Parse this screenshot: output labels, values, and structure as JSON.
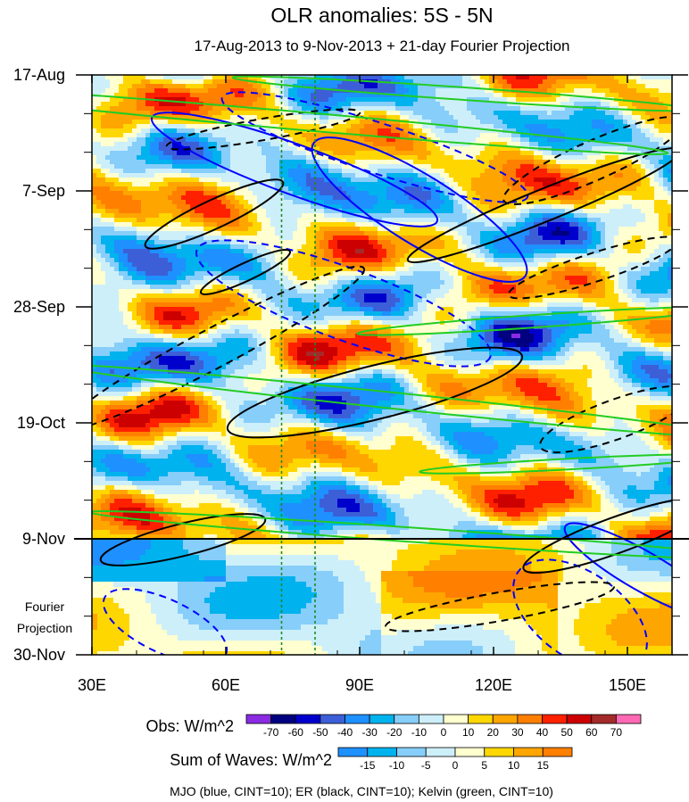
{
  "chart_data": {
    "type": "heatmap",
    "title": "OLR anomalies: 5S - 5N",
    "subtitle": "17-Aug-2013 to 9-Nov-2013 + 21-day Fourier Projection",
    "xaxis": {
      "ticks": [
        "30E",
        "60E",
        "90E",
        "120E",
        "150E"
      ],
      "tick_values": [
        30,
        60,
        90,
        120,
        150
      ],
      "range": [
        30,
        160
      ]
    },
    "yaxis": {
      "ticks": [
        "17-Aug",
        "7-Sep",
        "28-Sep",
        "19-Oct",
        "9-Nov",
        "30-Nov"
      ],
      "tick_days": [
        0,
        21,
        42,
        63,
        84,
        105
      ],
      "range_days": [
        0,
        105
      ]
    },
    "projection_label": [
      "Fourier",
      "Projection"
    ],
    "projection_start_day": 84,
    "reference_longitudes": [
      72.5,
      80
    ],
    "obs_colorbar": {
      "label": "Obs: W/m^2",
      "levels": [
        -70,
        -60,
        -50,
        -40,
        -30,
        -20,
        -10,
        0,
        10,
        20,
        30,
        40,
        50,
        60,
        70
      ],
      "colors": [
        "#8a2be2",
        "#000080",
        "#0000cd",
        "#3c5fd8",
        "#1e90ff",
        "#00b2ee",
        "#87cefa",
        "#cdeffa",
        "#ffffd0",
        "#ffd700",
        "#ffa500",
        "#ff7f00",
        "#ff2000",
        "#cc0000",
        "#a52a2a",
        "#ff69b4"
      ]
    },
    "waves_colorbar": {
      "label": "Sum of Waves: W/m^2",
      "levels": [
        -15,
        -10,
        -5,
        0,
        5,
        10,
        15
      ],
      "colors": [
        "#1e90ff",
        "#00b2ee",
        "#87cefa",
        "#cdeffa",
        "#ffffd0",
        "#ffd700",
        "#ffa500",
        "#ff7f00"
      ]
    },
    "contours": [
      {
        "name": "MJO",
        "color": "blue",
        "cint": 10
      },
      {
        "name": "ER",
        "color": "black",
        "cint": 10
      },
      {
        "name": "Kelvin",
        "color": "green",
        "cint": 10
      }
    ],
    "footer": "MJO (blue, CINT=10); ER (black, CINT=10); Kelvin (green, CINT=10)"
  }
}
